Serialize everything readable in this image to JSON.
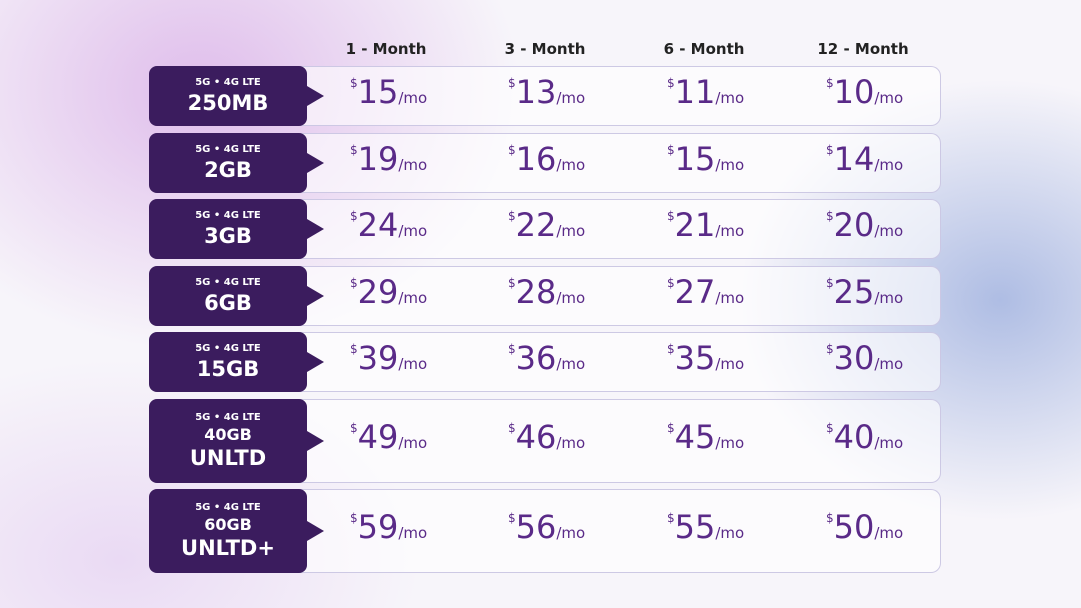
{
  "header": {
    "columns": [
      "1 - Month",
      "3 - Month",
      "6 - Month",
      "12 - Month"
    ]
  },
  "currency": "$",
  "unit": "/mo",
  "table": {
    "rows": [
      {
        "network": "5G • 4G LTE",
        "plan": [
          "250MB"
        ],
        "prices": [
          15,
          13,
          11,
          10
        ]
      },
      {
        "network": "5G • 4G LTE",
        "plan": [
          "2GB"
        ],
        "prices": [
          19,
          16,
          15,
          14
        ]
      },
      {
        "network": "5G • 4G LTE",
        "plan": [
          "3GB"
        ],
        "prices": [
          24,
          22,
          21,
          20
        ]
      },
      {
        "network": "5G • 4G LTE",
        "plan": [
          "6GB"
        ],
        "prices": [
          29,
          28,
          27,
          25
        ]
      },
      {
        "network": "5G • 4G LTE",
        "plan": [
          "15GB"
        ],
        "prices": [
          39,
          36,
          35,
          30
        ]
      },
      {
        "network": "5G • 4G LTE",
        "plan": [
          "40GB",
          "UNLTD"
        ],
        "prices": [
          49,
          46,
          45,
          40
        ]
      },
      {
        "network": "5G • 4G LTE",
        "plan": [
          "60GB",
          "UNLTD+"
        ],
        "prices": [
          59,
          56,
          55,
          50
        ]
      }
    ]
  }
}
